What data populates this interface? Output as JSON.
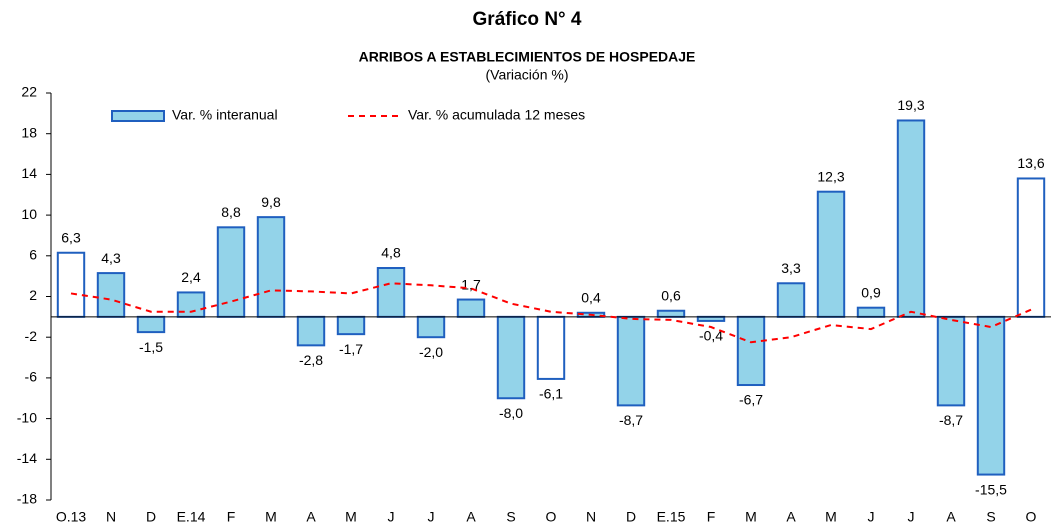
{
  "chart_data": {
    "type": "bar",
    "title": "Gráfico N° 4",
    "subtitle": "ARRIBOS A ESTABLECIMIENTOS DE HOSPEDAJE",
    "y_label": "(Variación %)",
    "categories": [
      "O.13",
      "N",
      "D",
      "E.14",
      "F",
      "M",
      "A",
      "M",
      "J",
      "J",
      "A",
      "S",
      "O",
      "N",
      "D",
      "E.15",
      "F",
      "M",
      "A",
      "M",
      "J",
      "J",
      "A",
      "S",
      "O"
    ],
    "series": [
      {
        "name": "Var. % interanual",
        "type": "bar",
        "color": "#93d3e9",
        "edge_color": "#1f5fbf",
        "colors": [
          "#ffffff",
          "#93d3e9",
          "#93d3e9",
          "#93d3e9",
          "#93d3e9",
          "#93d3e9",
          "#93d3e9",
          "#93d3e9",
          "#93d3e9",
          "#93d3e9",
          "#93d3e9",
          "#93d3e9",
          "#ffffff",
          "#93d3e9",
          "#93d3e9",
          "#93d3e9",
          "#93d3e9",
          "#93d3e9",
          "#93d3e9",
          "#93d3e9",
          "#93d3e9",
          "#93d3e9",
          "#93d3e9",
          "#93d3e9",
          "#ffffff"
        ],
        "values": [
          6.3,
          4.3,
          -1.5,
          2.4,
          8.8,
          9.8,
          -2.8,
          -1.7,
          4.8,
          -2.0,
          1.7,
          -8.0,
          -6.1,
          0.4,
          -8.7,
          0.6,
          -0.4,
          -6.7,
          3.3,
          12.3,
          0.9,
          19.3,
          -8.7,
          -15.5,
          13.6
        ],
        "value_labels": [
          "6,3",
          "4,3",
          "-1,5",
          "2,4",
          "8,8",
          "9,8",
          "-2,8",
          "-1,7",
          "4,8",
          "-2,0",
          "1,7",
          "-8,0",
          "-6,1",
          "0,4",
          "-8,7",
          "0,6",
          "-0,4",
          "-6,7",
          "3,3",
          "12,3",
          "0,9",
          "19,3",
          "-8,7",
          "-15,5",
          "13,6"
        ]
      },
      {
        "name": "Var. % acumulada 12 meses",
        "type": "line",
        "color": "#ff0000",
        "values": [
          2.3,
          1.7,
          0.5,
          0.5,
          1.5,
          2.6,
          2.5,
          2.3,
          3.3,
          3.1,
          2.8,
          1.3,
          0.5,
          0.2,
          -0.2,
          -0.3,
          -1.0,
          -2.5,
          -2.0,
          -0.8,
          -1.2,
          0.5,
          -0.3,
          -1.0,
          0.7
        ]
      }
    ],
    "ylim": [
      -18,
      22
    ],
    "yticks": [
      -18,
      -14,
      -10,
      -6,
      -2,
      2,
      6,
      10,
      14,
      18,
      22
    ],
    "grid": false
  }
}
